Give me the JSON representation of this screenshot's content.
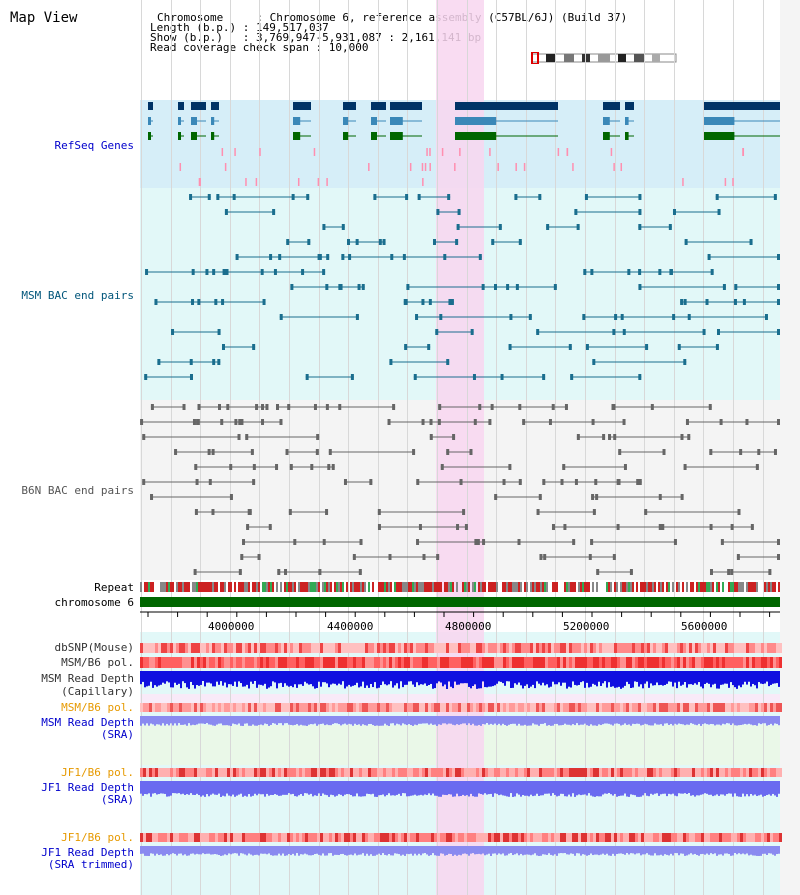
{
  "view": {
    "title": "Map View",
    "header_lines": [
      "Chromosome     : Chromosome 6, reference assembly (C57BL/6J) (Build 37)",
      "Length (b.p.) : 149,517,037",
      "Show (b.p.)   : 3,769,947-5,931,087 : 2,161,141 bp",
      "Read coverage check span : 10,000"
    ]
  },
  "tracks": {
    "refseq": "RefSeq Genes",
    "msm_bac": "MSM BAC end pairs",
    "b6n_bac": "B6N BAC end pairs",
    "repeat": "Repeat",
    "chromosome": "chromosome 6",
    "dbsnp": "dbSNP(Mouse)",
    "msm_b6_pol": "MSM/B6 pol.",
    "msm_depth_cap_1": "MSM Read Depth",
    "msm_depth_cap_2": "(Capillary)",
    "msm_b6_pol_sra": "MSM/B6 pol.",
    "msm_depth_sra_1": "MSM Read Depth",
    "msm_depth_sra_2": "(SRA)",
    "jf1_pol_1": "JF1/B6 pol.",
    "jf1_depth_sra_1": "JF1 Read Depth",
    "jf1_depth_sra_2": "(SRA)",
    "jf1_pol_2": "JF1/B6 pol.",
    "jf1_depth_trim_1": "JF1 Read Depth",
    "jf1_depth_trim_2": "(SRA trimmed)"
  },
  "ruler": {
    "labels": [
      "4000000",
      "4400000",
      "4800000",
      "5200000",
      "5600000"
    ]
  },
  "colors": {
    "refseq_bg": "#d6eef8",
    "msm_bg": "#e2f8f8",
    "b6n_bg": "#f4f4f4",
    "highlight": "#f8d6f0",
    "chromosome": "#006600",
    "depth_blue": "#1010e0",
    "depth_light": "#8a8af0"
  }
}
